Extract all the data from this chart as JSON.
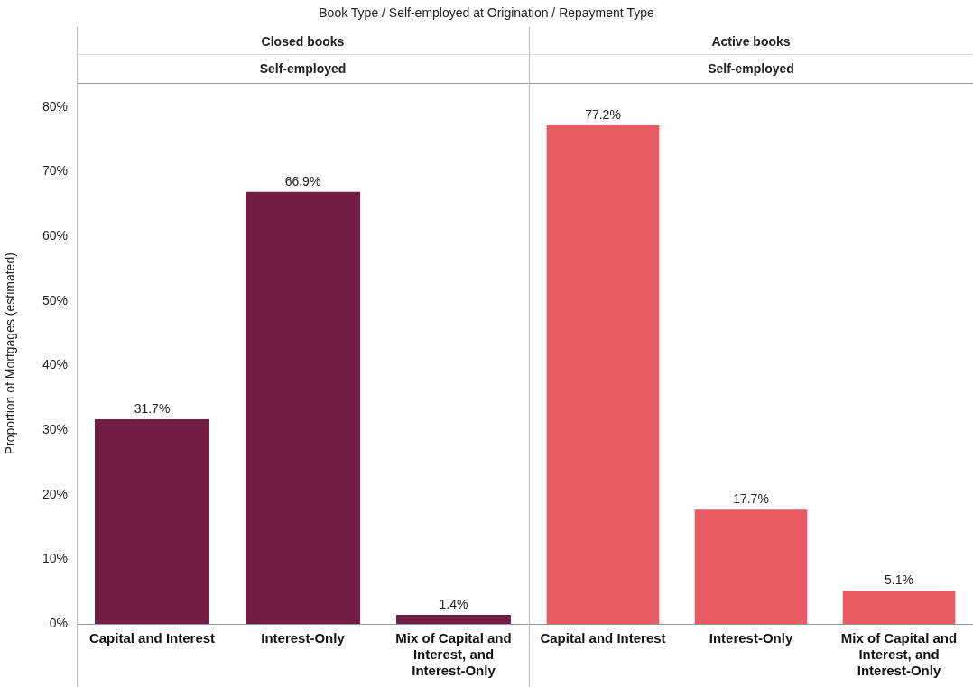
{
  "chart_data": [
    {
      "type": "bar",
      "title": "Closed books",
      "subtitle": "Self-employed",
      "annotations": [
        "Book Type  /  Self-employed at Origination  /  Repayment Type"
      ],
      "ylabel": "Proportion of Mortgages (estimated)",
      "categories": [
        "Capital and Interest",
        "Interest-Only",
        "Mix of Capital and Interest, and Interest-Only"
      ],
      "values": [
        31.7,
        66.9,
        1.4
      ],
      "value_labels": [
        "31.7%",
        "66.9%",
        "1.4%"
      ],
      "color": "#721b43",
      "ylim": [
        0,
        83.7
      ],
      "yticks": [
        {
          "value": 0,
          "label": "0%"
        },
        {
          "value": 10,
          "label": "10%"
        },
        {
          "value": 20,
          "label": "20%"
        },
        {
          "value": 30,
          "label": "30%"
        },
        {
          "value": 40,
          "label": "40%"
        },
        {
          "value": 50,
          "label": "50%"
        },
        {
          "value": 60,
          "label": "60%"
        },
        {
          "value": 70,
          "label": "70%"
        },
        {
          "value": 80,
          "label": "80%"
        }
      ],
      "grid": false
    },
    {
      "type": "bar",
      "title": "Active books",
      "subtitle": "Self-employed",
      "categories": [
        "Capital and Interest",
        "Interest-Only",
        "Mix of Capital and Interest, and Interest-Only"
      ],
      "values": [
        77.2,
        17.7,
        5.1
      ],
      "value_labels": [
        "77.2%",
        "17.7%",
        "5.1%"
      ],
      "color": "#e85a62",
      "ylim": [
        0,
        83.7
      ],
      "grid": false,
      "tick_labels": "x"
    }
  ]
}
